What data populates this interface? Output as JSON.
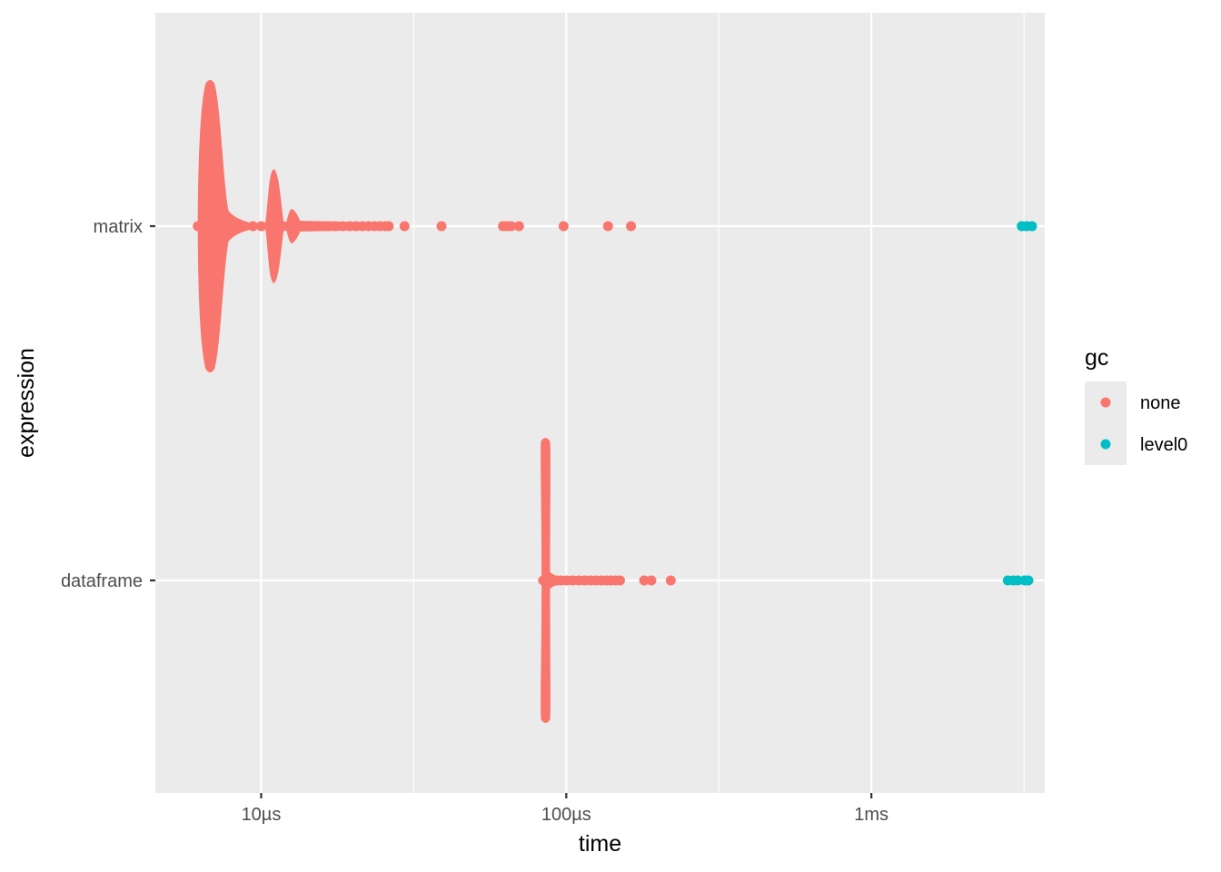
{
  "chart_data": {
    "type": "scatter",
    "title": "",
    "xlabel": "time",
    "ylabel": "expression",
    "x_scale": "log10",
    "x_unit": "seconds",
    "xlim": [
      4.5e-06,
      0.0037
    ],
    "x_ticks": [
      {
        "value": 1e-05,
        "label": "10µs"
      },
      {
        "value": 0.0001,
        "label": "100µs"
      },
      {
        "value": 0.001,
        "label": "1ms"
      }
    ],
    "categories": [
      "matrix",
      "dataframe"
    ],
    "grid": true,
    "legend": {
      "title": "gc",
      "position": "right",
      "entries": [
        {
          "name": "none",
          "color": "#F8766D"
        },
        {
          "name": "level0",
          "color": "#00BFC4"
        }
      ]
    },
    "series": [
      {
        "category": "matrix",
        "gc": "none",
        "mode": "1",
        "x": 6.8e-06,
        "points": [
          6.2e-06,
          6.4e-06,
          6.6e-06,
          6.8e-06,
          7e-06,
          7.2e-06,
          7.4e-06,
          7.8e-06,
          8.2e-06,
          8.8e-06,
          9.4e-06,
          1e-05,
          1.06e-05,
          1.1e-05,
          1.14e-05,
          1.18e-05,
          1.23e-05,
          1.28e-05,
          1.33e-05,
          1.4e-05,
          1.48e-05,
          1.55e-05,
          1.65e-05,
          1.75e-05,
          1.85e-05,
          1.95e-05,
          2.05e-05,
          2.15e-05,
          2.25e-05,
          2.35e-05,
          2.45e-05,
          2.55e-05,
          2.62e-05,
          2.95e-05,
          3.9e-05,
          6.2e-05,
          6.4e-05,
          6.6e-05,
          7e-05,
          9.8e-05,
          0.000137,
          0.000163
        ]
      },
      {
        "category": "matrix",
        "gc": "level0",
        "x": 0.0032,
        "points": [
          0.00311,
          0.00323,
          0.00336
        ]
      },
      {
        "category": "dataframe",
        "gc": "none",
        "mode": "1",
        "x": 8.5e-05,
        "points": [
          8.4e-05,
          8.6e-05,
          8.8e-05,
          9e-05,
          9.3e-05,
          9.6e-05,
          0.0001,
          0.000105,
          0.00011,
          0.000115,
          0.00012,
          0.000125,
          0.00013,
          0.000135,
          0.00014,
          0.000145,
          0.00015,
          0.00018,
          0.00019,
          0.00022
        ]
      },
      {
        "category": "dataframe",
        "gc": "level0",
        "x": 0.003,
        "points": [
          0.0028,
          0.00292,
          0.00302,
          0.00318,
          0.00327
        ]
      }
    ]
  }
}
